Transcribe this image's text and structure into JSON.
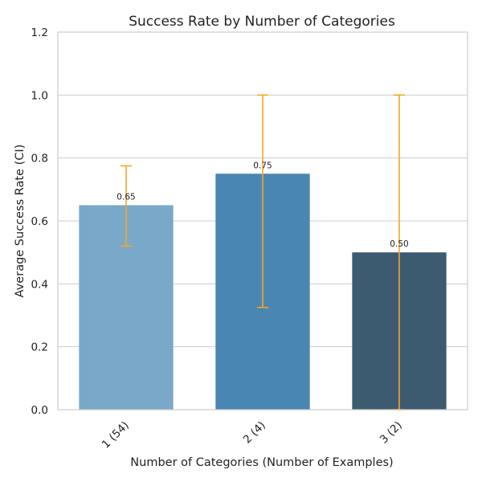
{
  "chart_data": {
    "type": "bar",
    "title": "Success Rate by Number of Categories",
    "xlabel": "Number of Categories (Number of Examples)",
    "ylabel": "Average Success Rate (CI)",
    "categories": [
      "1 (54)",
      "2 (4)",
      "3 (2)"
    ],
    "values": [
      0.65,
      0.75,
      0.5
    ],
    "value_labels": [
      "0.65",
      "0.75",
      "0.50"
    ],
    "ci_low": [
      0.52,
      0.325,
      0.0
    ],
    "ci_high": [
      0.775,
      1.0,
      1.0
    ],
    "ylim": [
      0,
      1.2
    ],
    "yticks": [
      0.0,
      0.2,
      0.4,
      0.6,
      0.8,
      1.0,
      1.2
    ],
    "ytick_labels": [
      "0.0",
      "0.2",
      "0.4",
      "0.6",
      "0.8",
      "1.0",
      "1.2"
    ],
    "grid": "horizontal",
    "colors": {
      "bars": [
        "#7aa8c8",
        "#4a86b2",
        "#3c5b70"
      ],
      "error_bars": "#f5a623",
      "grid": "#cccccc",
      "frame": "#cccccc"
    }
  }
}
